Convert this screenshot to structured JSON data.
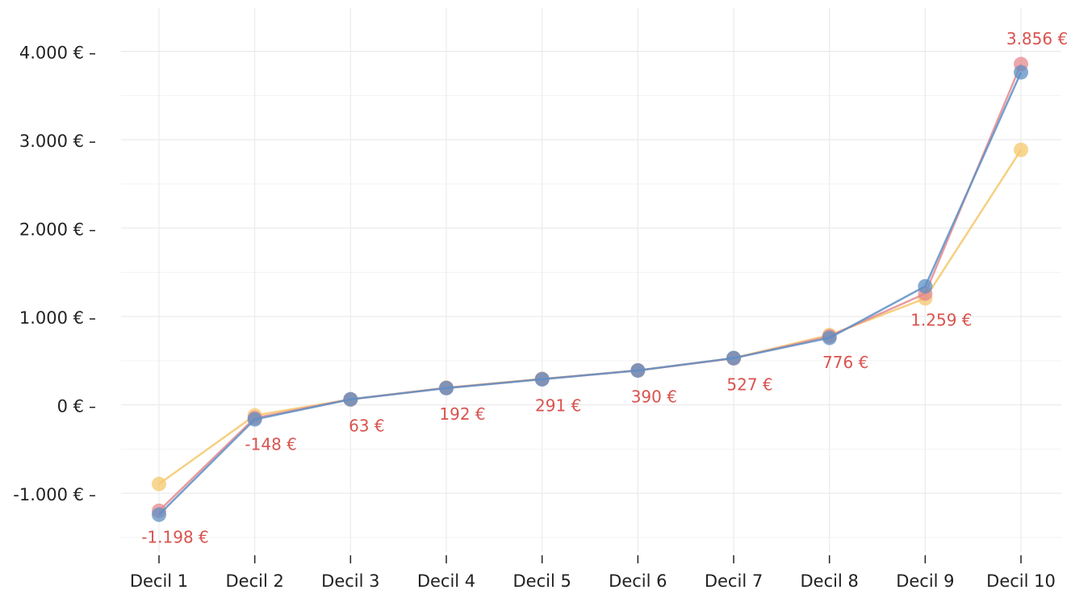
{
  "chart_data": {
    "type": "line",
    "categories": [
      "Decil 1",
      "Decil 2",
      "Decil 3",
      "Decil 4",
      "Decil 5",
      "Decil 6",
      "Decil 7",
      "Decil 8",
      "Decil 9",
      "Decil 10"
    ],
    "series": [
      {
        "color": "#f4c86c",
        "values": [
          -895,
          -119,
          63,
          195,
          295,
          390,
          530,
          790,
          1205,
          2886
        ]
      },
      {
        "color": "#e58a8f",
        "values": [
          -1198,
          -148,
          63,
          192,
          291,
          390,
          527,
          776,
          1259,
          3856
        ],
        "value_labels": [
          "-1.198 €",
          "-148 €",
          "63 €",
          "192 €",
          "291 €",
          "390 €",
          "527 €",
          "776 €",
          "1.259 €",
          "3.856 €"
        ]
      },
      {
        "color": "#5e8fc4",
        "values": [
          -1242,
          -164,
          63,
          190,
          290,
          390,
          530,
          758,
          1342,
          3763
        ]
      }
    ],
    "ylim": [
      -1720,
      4490
    ],
    "yticks": [
      {
        "value": -1000,
        "label": "-1.000 €"
      },
      {
        "value": 0,
        "label": "0 €"
      },
      {
        "value": 1000,
        "label": "1.000 €"
      },
      {
        "value": 2000,
        "label": "2.000 €"
      },
      {
        "value": 3000,
        "label": "3.000 €"
      },
      {
        "value": 4000,
        "label": "4.000 €"
      }
    ],
    "minor_yticks": [
      -1500,
      -500,
      500,
      1500,
      2500,
      3500
    ],
    "grid": true
  }
}
